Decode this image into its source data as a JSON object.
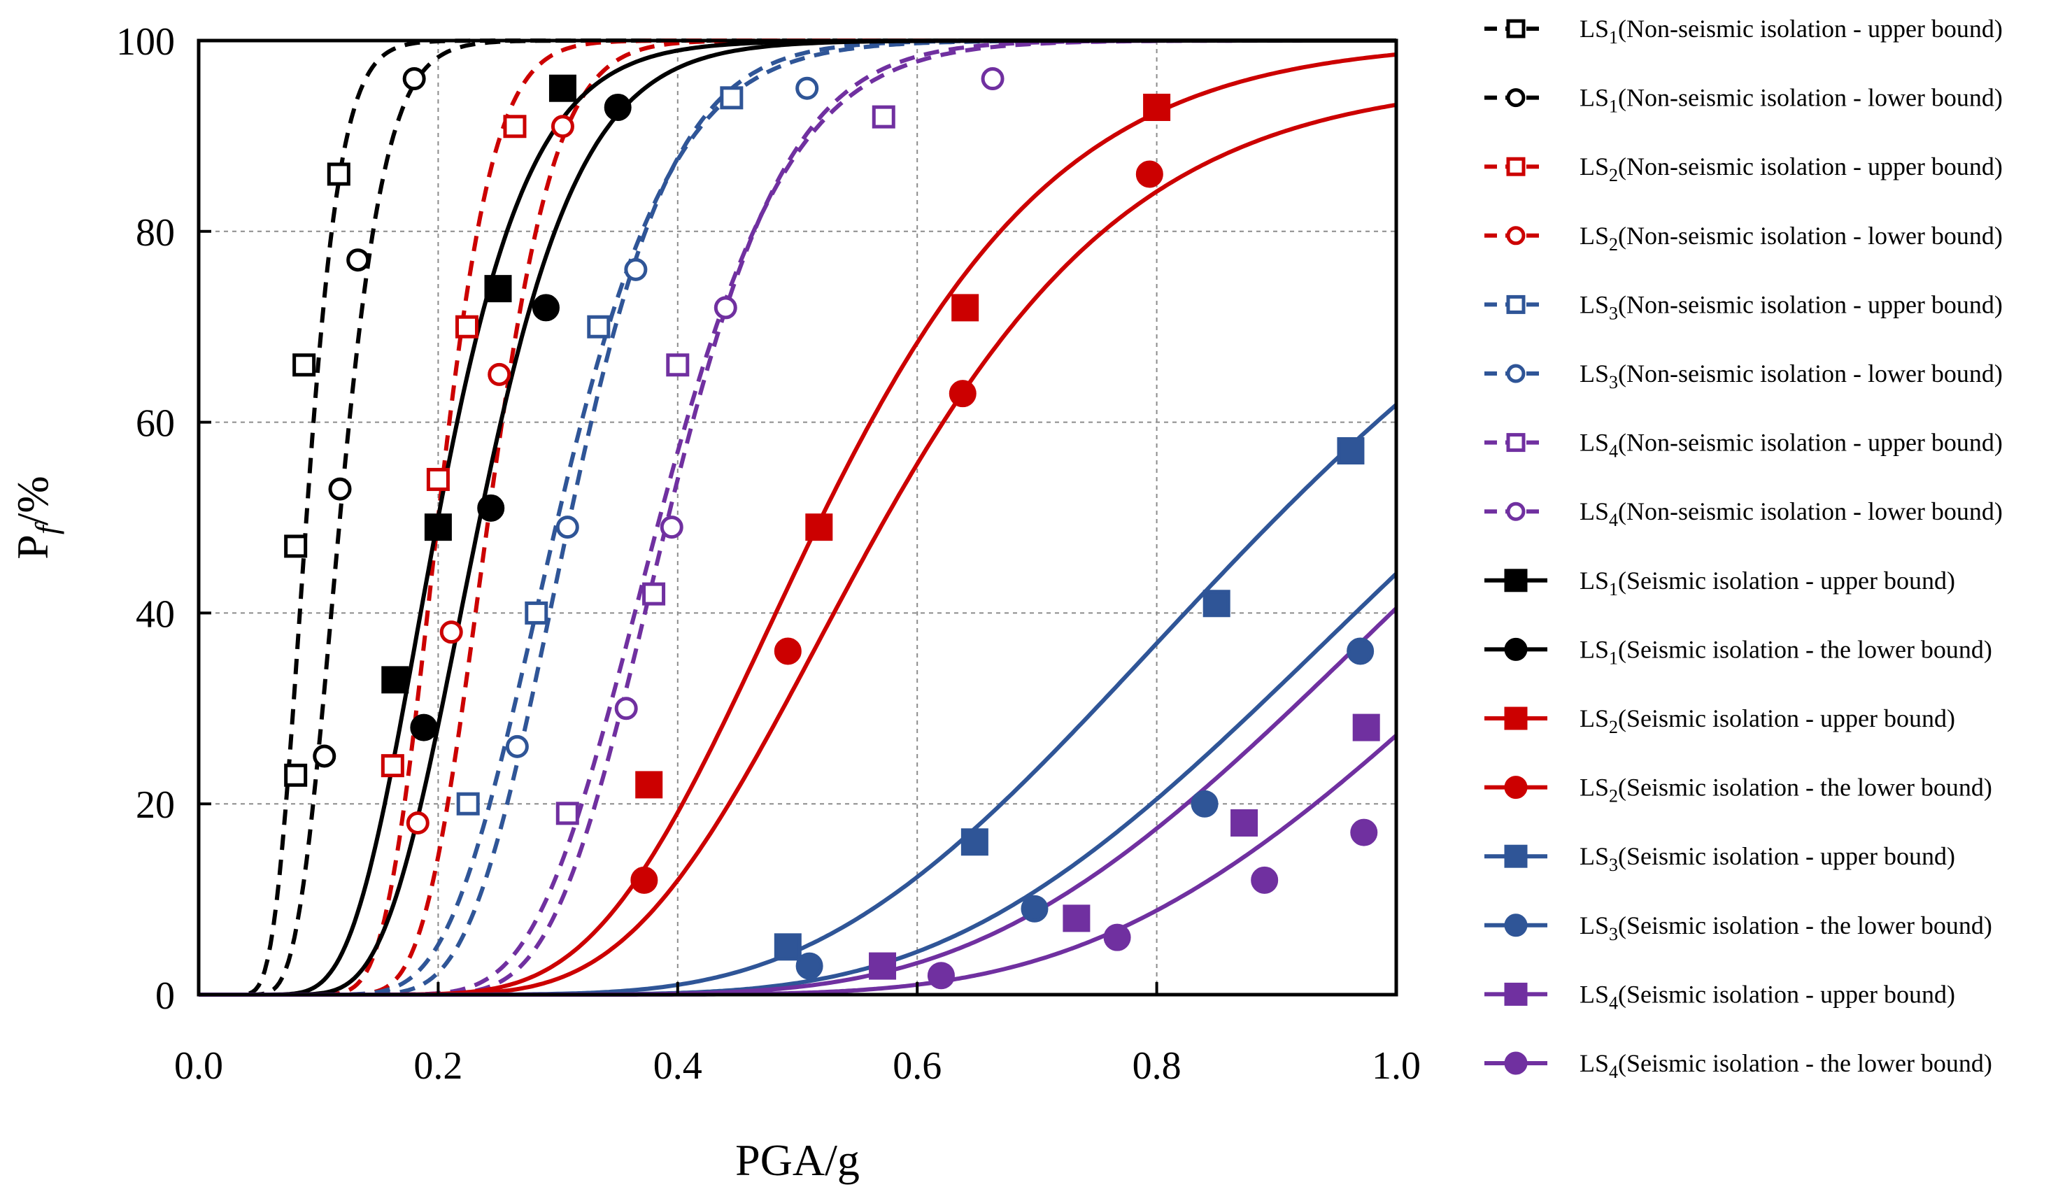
{
  "chart_data": {
    "type": "line",
    "xlabel": "PGA/g",
    "ylabel": {
      "main": "P",
      "sub": "f",
      "unit": "/%"
    },
    "xlim": [
      0,
      1.0
    ],
    "ylim": [
      0,
      100
    ],
    "xticks": [
      "0.0",
      "0.2",
      "0.4",
      "0.6",
      "0.8",
      "1.0"
    ],
    "yticks": [
      "0",
      "20",
      "40",
      "60",
      "80",
      "100"
    ],
    "grid": true,
    "legend_position": "right, outside",
    "series": [
      {
        "name": "LS1(Non-seismic isolation - upper bound)",
        "prefix": "LS",
        "sub": "1",
        "label": "(Non-seismic isolation - upper bound)",
        "color": "#000000",
        "dash": true,
        "marker": "square",
        "filled": false,
        "median": 0.09,
        "beta": 0.25,
        "max": 100,
        "points": [
          [
            0.081,
            23
          ],
          [
            0.081,
            47
          ],
          [
            0.088,
            66
          ],
          [
            0.117,
            86
          ]
        ]
      },
      {
        "name": "LS1(Non-seismic isolation - lower bound)",
        "prefix": "LS",
        "sub": "1",
        "label": "(Non-seismic isolation - lower bound)",
        "color": "#000000",
        "dash": true,
        "marker": "circle",
        "filled": false,
        "median": 0.118,
        "beta": 0.25,
        "max": 100,
        "points": [
          [
            0.105,
            25
          ],
          [
            0.118,
            53
          ],
          [
            0.133,
            77
          ],
          [
            0.18,
            96
          ]
        ]
      },
      {
        "name": "LS2(Non-seismic isolation - upper bound)",
        "prefix": "LS",
        "sub": "2",
        "label": "(Non-seismic isolation - upper bound)",
        "color": "#cc0000",
        "dash": true,
        "marker": "square",
        "filled": false,
        "median": 0.2,
        "beta": 0.18,
        "max": 100,
        "points": [
          [
            0.162,
            24
          ],
          [
            0.2,
            54
          ],
          [
            0.224,
            70
          ],
          [
            0.264,
            91
          ]
        ]
      },
      {
        "name": "LS2(Non-seismic isolation - lower bound)",
        "prefix": "LS",
        "sub": "2",
        "label": "(Non-seismic isolation - lower bound)",
        "color": "#cc0000",
        "dash": true,
        "marker": "circle",
        "filled": false,
        "median": 0.242,
        "beta": 0.18,
        "max": 100,
        "points": [
          [
            0.183,
            18
          ],
          [
            0.211,
            38
          ],
          [
            0.251,
            65
          ],
          [
            0.304,
            91
          ]
        ]
      },
      {
        "name": "LS3(Non-seismic isolation - upper bound)",
        "prefix": "LS",
        "sub": "3",
        "label": "(Non-seismic isolation - upper bound)",
        "color": "#2f5597",
        "dash": true,
        "marker": "square",
        "filled": false,
        "median": 0.3,
        "beta": 0.25,
        "max": 100,
        "points": [
          [
            0.225,
            20
          ],
          [
            0.282,
            40
          ],
          [
            0.334,
            70
          ],
          [
            0.445,
            94
          ]
        ]
      },
      {
        "name": "LS3(Non-seismic isolation - lower bound)",
        "prefix": "LS",
        "sub": "3",
        "label": "(Non-seismic isolation - lower bound)",
        "color": "#2f5597",
        "dash": true,
        "marker": "circle",
        "filled": false,
        "median": 0.31,
        "beta": 0.22,
        "max": 100,
        "points": [
          [
            0.266,
            26
          ],
          [
            0.308,
            49
          ],
          [
            0.365,
            76
          ],
          [
            0.508,
            95
          ]
        ]
      },
      {
        "name": "LS4(Non-seismic isolation - upper bound)",
        "prefix": "LS",
        "sub": "4",
        "label": "(Non-seismic isolation - upper bound)",
        "color": "#7030a0",
        "dash": true,
        "marker": "square",
        "filled": false,
        "median": 0.385,
        "beta": 0.22,
        "max": 100,
        "points": [
          [
            0.308,
            19
          ],
          [
            0.38,
            42
          ],
          [
            0.4,
            66
          ],
          [
            0.572,
            92
          ]
        ]
      },
      {
        "name": "LS4(Non-seismic isolation - lower bound)",
        "prefix": "LS",
        "sub": "4",
        "label": "(Non-seismic isolation - lower bound)",
        "color": "#7030a0",
        "dash": true,
        "marker": "circle",
        "filled": false,
        "median": 0.392,
        "beta": 0.2,
        "max": 100,
        "points": [
          [
            0.357,
            30
          ],
          [
            0.395,
            49
          ],
          [
            0.44,
            72
          ],
          [
            0.663,
            96
          ]
        ]
      },
      {
        "name": "LS1(Seismic isolation - upper bound)",
        "prefix": "LS",
        "sub": "1",
        "label": "(Seismic isolation - upper bound)",
        "color": "#000000",
        "dash": false,
        "marker": "square",
        "filled": true,
        "median": 0.2,
        "beta": 0.3,
        "max": 100,
        "points": [
          [
            0.164,
            33
          ],
          [
            0.2,
            49
          ],
          [
            0.25,
            74
          ],
          [
            0.304,
            95
          ]
        ]
      },
      {
        "name": "LS1(Seismic isolation - the lower bound)",
        "prefix": "LS",
        "sub": "1",
        "label": "(Seismic isolation - the lower bound)",
        "color": "#000000",
        "dash": false,
        "marker": "circle",
        "filled": true,
        "median": 0.235,
        "beta": 0.28,
        "max": 100,
        "points": [
          [
            0.188,
            28
          ],
          [
            0.244,
            51
          ],
          [
            0.29,
            72
          ],
          [
            0.35,
            93
          ]
        ]
      },
      {
        "name": "LS2(Seismic isolation - upper bound)",
        "prefix": "LS",
        "sub": "2",
        "label": "(Seismic isolation - upper bound)",
        "color": "#cc0000",
        "dash": false,
        "marker": "square",
        "filled": true,
        "median": 0.52,
        "beta": 0.3,
        "max": 100,
        "points": [
          [
            0.376,
            22
          ],
          [
            0.518,
            49
          ],
          [
            0.64,
            72
          ],
          [
            0.8,
            93
          ]
        ]
      },
      {
        "name": "LS2(Seismic isolation - the lower bound)",
        "prefix": "LS",
        "sub": "2",
        "label": "(Seismic isolation - the lower bound)",
        "color": "#cc0000",
        "dash": false,
        "marker": "circle",
        "filled": true,
        "median": 0.565,
        "beta": 0.3,
        "max": 96,
        "points": [
          [
            0.372,
            12
          ],
          [
            0.492,
            36
          ],
          [
            0.638,
            63
          ],
          [
            0.794,
            86
          ]
        ]
      },
      {
        "name": "LS3(Seismic isolation - upper bound)",
        "prefix": "LS",
        "sub": "3",
        "label": "(Seismic isolation - upper bound)",
        "color": "#2f5597",
        "dash": false,
        "marker": "square",
        "filled": true,
        "median": 0.9,
        "beta": 0.35,
        "max": 100,
        "points": [
          [
            0.492,
            5
          ],
          [
            0.648,
            16
          ],
          [
            0.85,
            41
          ],
          [
            0.962,
            57
          ]
        ]
      },
      {
        "name": "LS3(Seismic isolation - the lower bound)",
        "prefix": "LS",
        "sub": "3",
        "label": "(Seismic isolation - the lower bound)",
        "color": "#2f5597",
        "dash": false,
        "marker": "circle",
        "filled": true,
        "median": 1.05,
        "beta": 0.33,
        "max": 100,
        "points": [
          [
            0.51,
            3
          ],
          [
            0.698,
            9
          ],
          [
            0.84,
            20
          ],
          [
            0.97,
            36
          ]
        ]
      },
      {
        "name": "LS4(Seismic isolation - upper bound)",
        "prefix": "LS",
        "sub": "4",
        "label": "(Seismic isolation - upper bound)",
        "color": "#7030a0",
        "dash": false,
        "marker": "square",
        "filled": true,
        "median": 1.08,
        "beta": 0.32,
        "max": 100,
        "points": [
          [
            0.571,
            3
          ],
          [
            0.733,
            8
          ],
          [
            0.873,
            18
          ],
          [
            0.975,
            28
          ]
        ]
      },
      {
        "name": "LS4(Seismic isolation - the lower bound)",
        "prefix": "LS",
        "sub": "4",
        "label": "(Seismic isolation - the lower bound)",
        "color": "#7030a0",
        "dash": false,
        "marker": "circle",
        "filled": true,
        "median": 1.2,
        "beta": 0.3,
        "max": 100,
        "points": [
          [
            0.62,
            2
          ],
          [
            0.767,
            6
          ],
          [
            0.89,
            12
          ],
          [
            0.973,
            17
          ]
        ]
      }
    ]
  }
}
